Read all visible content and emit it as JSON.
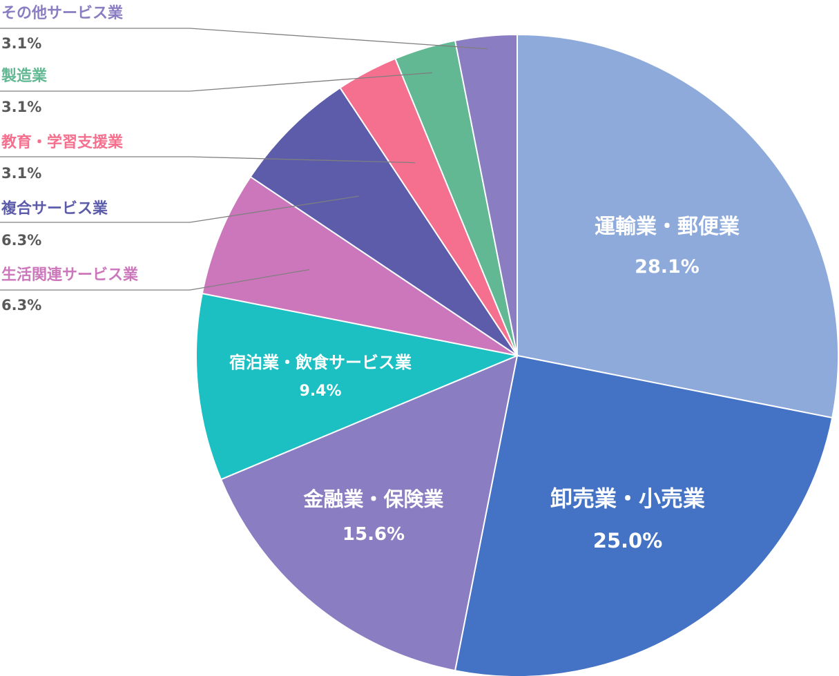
{
  "chart_data": {
    "type": "pie",
    "title": "",
    "start_angle_deg": 0,
    "direction": "clockwise",
    "slices": [
      {
        "label": "運輸業・郵便業",
        "value": 28.1,
        "value_label": "28.1%",
        "color": "#8eaadb",
        "label_position": "inside"
      },
      {
        "label": "卸売業・小売業",
        "value": 25.0,
        "value_label": "25.0%",
        "color": "#4472c4",
        "label_position": "inside"
      },
      {
        "label": "金融業・保険業",
        "value": 15.6,
        "value_label": "15.6%",
        "color": "#8b7dc1",
        "label_position": "inside"
      },
      {
        "label": "宿泊業・飲食サービス業",
        "value": 9.4,
        "value_label": "9.4%",
        "color": "#1cc0c2",
        "label_position": "inside"
      },
      {
        "label": "生活関連サービス業",
        "value": 6.3,
        "value_label": "6.3%",
        "color": "#cc77bb",
        "label_position": "outside"
      },
      {
        "label": "複合サービス業",
        "value": 6.3,
        "value_label": "6.3%",
        "color": "#5c5cab",
        "label_position": "outside"
      },
      {
        "label": "教育・学習支援業",
        "value": 3.1,
        "value_label": "3.1%",
        "color": "#f4708e",
        "label_position": "outside"
      },
      {
        "label": "製造業",
        "value": 3.1,
        "value_label": "3.1%",
        "color": "#62b893",
        "label_position": "outside"
      },
      {
        "label": "その他サービス業",
        "value": 3.1,
        "value_label": "3.1%",
        "color": "#8b7dc1",
        "label_position": "outside"
      }
    ]
  }
}
